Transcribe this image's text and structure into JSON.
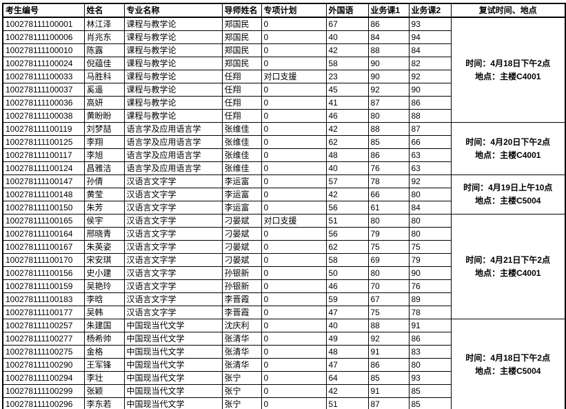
{
  "table": {
    "headers": [
      "考生编号",
      "姓名",
      "专业名称",
      "导师姓名",
      "专项计划",
      "外国语",
      "业务课1",
      "业务课2",
      "复试时间、地点"
    ],
    "rows": [
      {
        "id": "100278111100001",
        "name": "林江泽",
        "major": "课程与教学论",
        "advisor": "郑国民",
        "special": "0",
        "foreign_lang": "67",
        "course1": "86",
        "course2": "93"
      },
      {
        "id": "100278111100006",
        "name": "肖兆东",
        "major": "课程与教学论",
        "advisor": "郑国民",
        "special": "0",
        "foreign_lang": "40",
        "course1": "84",
        "course2": "94"
      },
      {
        "id": "100278111100010",
        "name": "陈露",
        "major": "课程与教学论",
        "advisor": "郑国民",
        "special": "0",
        "foreign_lang": "42",
        "course1": "88",
        "course2": "84"
      },
      {
        "id": "100278111100024",
        "name": "倪蕴佳",
        "major": "课程与教学论",
        "advisor": "郑国民",
        "special": "0",
        "foreign_lang": "58",
        "course1": "90",
        "course2": "82"
      },
      {
        "id": "100278111100033",
        "name": "马胜科",
        "major": "课程与教学论",
        "advisor": "任翔",
        "special": "对口支援",
        "foreign_lang": "23",
        "course1": "90",
        "course2": "92"
      },
      {
        "id": "100278111100037",
        "name": "奚遥",
        "major": "课程与教学论",
        "advisor": "任翔",
        "special": "0",
        "foreign_lang": "45",
        "course1": "92",
        "course2": "90"
      },
      {
        "id": "100278111100036",
        "name": "高妍",
        "major": "课程与教学论",
        "advisor": "任翔",
        "special": "0",
        "foreign_lang": "41",
        "course1": "87",
        "course2": "86"
      },
      {
        "id": "100278111100038",
        "name": "黄盼盼",
        "major": "课程与教学论",
        "advisor": "任翔",
        "special": "0",
        "foreign_lang": "46",
        "course1": "80",
        "course2": "88"
      },
      {
        "id": "100278111100119",
        "name": "刘梦喆",
        "major": "语言学及应用语言学",
        "advisor": "张维佳",
        "special": "0",
        "foreign_lang": "42",
        "course1": "88",
        "course2": "87"
      },
      {
        "id": "100278111100125",
        "name": "李翔",
        "major": "语言学及应用语言学",
        "advisor": "张维佳",
        "special": "0",
        "foreign_lang": "62",
        "course1": "85",
        "course2": "66"
      },
      {
        "id": "100278111100117",
        "name": "李旭",
        "major": "语言学及应用语言学",
        "advisor": "张维佳",
        "special": "0",
        "foreign_lang": "48",
        "course1": "86",
        "course2": "63"
      },
      {
        "id": "100278111100124",
        "name": "昌雅洁",
        "major": "语言学及应用语言学",
        "advisor": "张维佳",
        "special": "0",
        "foreign_lang": "40",
        "course1": "76",
        "course2": "63"
      },
      {
        "id": "100278111100147",
        "name": "孙倩",
        "major": "汉语言文字学",
        "advisor": "李运富",
        "special": "0",
        "foreign_lang": "57",
        "course1": "78",
        "course2": "92"
      },
      {
        "id": "100278111100148",
        "name": "黄莹",
        "major": "汉语言文字学",
        "advisor": "李运富",
        "special": "0",
        "foreign_lang": "42",
        "course1": "66",
        "course2": "80"
      },
      {
        "id": "100278111100150",
        "name": "朱芳",
        "major": "汉语言文字学",
        "advisor": "李运富",
        "special": "0",
        "foreign_lang": "56",
        "course1": "61",
        "course2": "84"
      },
      {
        "id": "100278111100165",
        "name": "侯宇",
        "major": "汉语言文字学",
        "advisor": "刁晏斌",
        "special": "对口支援",
        "foreign_lang": "51",
        "course1": "80",
        "course2": "80"
      },
      {
        "id": "100278111100164",
        "name": "邢晓青",
        "major": "汉语言文字学",
        "advisor": "刁晏斌",
        "special": "0",
        "foreign_lang": "56",
        "course1": "79",
        "course2": "80"
      },
      {
        "id": "100278111100167",
        "name": "朱英姿",
        "major": "汉语言文字学",
        "advisor": "刁晏斌",
        "special": "0",
        "foreign_lang": "62",
        "course1": "75",
        "course2": "75"
      },
      {
        "id": "100278111100170",
        "name": "宋安琪",
        "major": "汉语言文字学",
        "advisor": "刁晏斌",
        "special": "0",
        "foreign_lang": "58",
        "course1": "69",
        "course2": "79"
      },
      {
        "id": "100278111100156",
        "name": "史小建",
        "major": "汉语言文字学",
        "advisor": "孙银新",
        "special": "0",
        "foreign_lang": "50",
        "course1": "80",
        "course2": "90"
      },
      {
        "id": "100278111100159",
        "name": "吴艳玲",
        "major": "汉语言文字学",
        "advisor": "孙银新",
        "special": "0",
        "foreign_lang": "46",
        "course1": "70",
        "course2": "76"
      },
      {
        "id": "100278111100183",
        "name": "李晗",
        "major": "汉语言文字学",
        "advisor": "李晋霞",
        "special": "0",
        "foreign_lang": "59",
        "course1": "67",
        "course2": "89"
      },
      {
        "id": "100278111100177",
        "name": "吴韩",
        "major": "汉语言文字学",
        "advisor": "李晋霞",
        "special": "0",
        "foreign_lang": "47",
        "course1": "75",
        "course2": "78"
      },
      {
        "id": "100278111100257",
        "name": "朱建国",
        "major": "中国现当代文学",
        "advisor": "沈庆利",
        "special": "0",
        "foreign_lang": "40",
        "course1": "88",
        "course2": "91"
      },
      {
        "id": "100278111100277",
        "name": "杨希帅",
        "major": "中国现当代文学",
        "advisor": "张清华",
        "special": "0",
        "foreign_lang": "49",
        "course1": "92",
        "course2": "86"
      },
      {
        "id": "100278111100275",
        "name": "金格",
        "major": "中国现当代文学",
        "advisor": "张清华",
        "special": "0",
        "foreign_lang": "48",
        "course1": "91",
        "course2": "83"
      },
      {
        "id": "100278111100290",
        "name": "王军锋",
        "major": "中国现当代文学",
        "advisor": "张清华",
        "special": "0",
        "foreign_lang": "47",
        "course1": "86",
        "course2": "80"
      },
      {
        "id": "100278111100294",
        "name": "李壮",
        "major": "中国现当代文学",
        "advisor": "张宁",
        "special": "0",
        "foreign_lang": "64",
        "course1": "85",
        "course2": "93"
      },
      {
        "id": "100278111100299",
        "name": "张颖",
        "major": "中国现当代文学",
        "advisor": "张宁",
        "special": "0",
        "foreign_lang": "42",
        "course1": "91",
        "course2": "85"
      },
      {
        "id": "100278111100296",
        "name": "李东若",
        "major": "中国现当代文学",
        "advisor": "张宁",
        "special": "0",
        "foreign_lang": "51",
        "course1": "87",
        "course2": "85"
      }
    ],
    "groups": [
      {
        "start": 0,
        "span": 8,
        "time": "时间：4月18日下午2点",
        "place": "地点：主楼C4001"
      },
      {
        "start": 8,
        "span": 4,
        "time": "时间：4月20日下午2点",
        "place": "地点：主楼C4001"
      },
      {
        "start": 12,
        "span": 3,
        "time": "时间：4月19日上午10点",
        "place": "地点：主楼C5004"
      },
      {
        "start": 15,
        "span": 8,
        "time": "时间：4月21日下午2点",
        "place": "地点：主楼C4001"
      },
      {
        "start": 23,
        "span": 7,
        "time": "时间：4月18日下午2点",
        "place": "地点：主楼C5004"
      }
    ]
  }
}
